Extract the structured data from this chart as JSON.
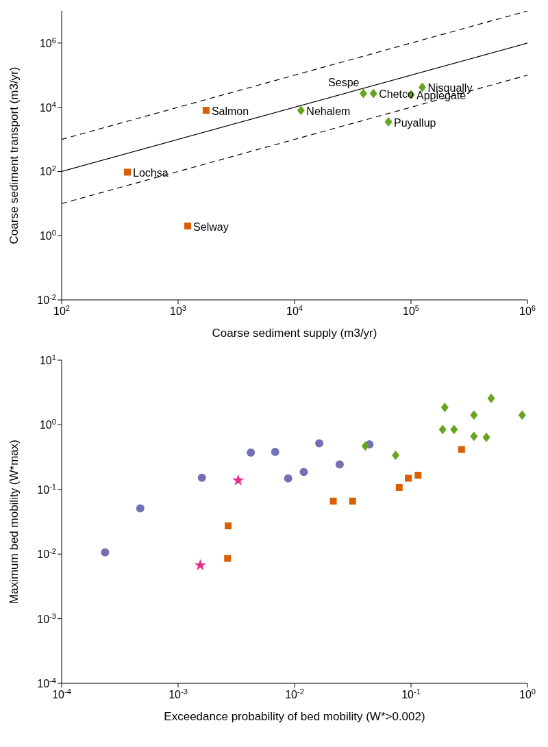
{
  "chart_data": [
    {
      "type": "scatter",
      "xlabel": "Coarse sediment supply (m3/yr)",
      "ylabel": "Coarse sediment transport (m3/yr)",
      "log": "xy",
      "xlim": [
        100,
        1000000
      ],
      "xticks": [
        {
          "value": 100,
          "label": "10$^{2}$"
        },
        {
          "value": 1000,
          "label": "10$^{3}$"
        },
        {
          "value": 10000,
          "label": "10$^{4}$"
        },
        {
          "value": 100000,
          "label": "10$^{5}$"
        },
        {
          "value": 1000000,
          "label": "10$^{6}$"
        }
      ],
      "ylim": [
        0.01,
        10000000
      ],
      "yticks": [
        {
          "value": 0.01,
          "label": "10$^{-2}$"
        },
        {
          "value": 1,
          "label": "10$^{0}$"
        },
        {
          "value": 100,
          "label": "10$^{2}$"
        },
        {
          "value": 10000,
          "label": "10$^{4}$"
        },
        {
          "value": 1000000,
          "label": "10$^{6}$"
        }
      ],
      "series": [
        {
          "color": "#d95f02",
          "marker": "square",
          "x": [
            1740,
            367,
            1210
          ],
          "values": [
            8000,
            95,
            2
          ]
        },
        {
          "color": "#66a61e",
          "marker": "diamond",
          "x": [
            11350,
            39000,
            47600,
            100000,
            125000,
            64000
          ],
          "values": [
            8000,
            27000,
            27000,
            24700,
            42000,
            3500
          ]
        },
        {
          "type": "line",
          "color": "#000000",
          "marker": "none",
          "line_style": "solid",
          "x": [
            100,
            1000000
          ],
          "values": [
            100,
            1000000
          ]
        },
        {
          "type": "line",
          "color": "#000000",
          "marker": "none",
          "line_style": "dashed",
          "x": [
            100,
            1000000
          ],
          "values": [
            1000,
            10000000
          ]
        },
        {
          "type": "line",
          "color": "#000000",
          "marker": "none",
          "line_style": "dashed",
          "x": [
            100,
            1000000
          ],
          "values": [
            10,
            100000
          ]
        }
      ],
      "annotations": [
        {
          "text": "Salmon",
          "x": 1740,
          "y": 8000
        },
        {
          "text": "Lochsa",
          "x": 367,
          "y": 95
        },
        {
          "text": "Selway",
          "x": 1210,
          "y": 2
        },
        {
          "text": "Nehalem",
          "x": 11350,
          "y": 8000
        },
        {
          "text": "Sespe",
          "x": 39000,
          "y": 27000
        },
        {
          "text": "Chetco",
          "x": 47600,
          "y": 27000
        },
        {
          "text": "Applegate",
          "x": 100000,
          "y": 24700
        },
        {
          "text": "Nisqually",
          "x": 125000,
          "y": 42000
        },
        {
          "text": "Puyallup",
          "x": 64000,
          "y": 3500
        }
      ]
    },
    {
      "type": "scatter",
      "xlabel": "Exceedance probability of bed mobility (W*>0.002)",
      "ylabel": "Maximum bed mobility (W*max)",
      "log": "xy",
      "xlim": [
        0.0001,
        1
      ],
      "xticks": [
        {
          "value": 0.0001,
          "label": "10$^{-4}$"
        },
        {
          "value": 0.001,
          "label": "10$^{-3}$"
        },
        {
          "value": 0.01,
          "label": "10$^{-2}$"
        },
        {
          "value": 0.1,
          "label": "10$^{-1}$"
        },
        {
          "value": 1,
          "label": "10$^{0}$"
        }
      ],
      "ylim": [
        0.0001,
        10
      ],
      "yticks": [
        {
          "value": 0.0001,
          "label": "10$^{-4}$"
        },
        {
          "value": 0.001,
          "label": "10$^{-3}$"
        },
        {
          "value": 0.01,
          "label": "10$^{-2}$"
        },
        {
          "value": 0.1,
          "label": "10$^{-1}$"
        },
        {
          "value": 1,
          "label": "10$^{0}$"
        },
        {
          "value": 10,
          "label": "10$^{1}$"
        }
      ],
      "series": [
        {
          "color": "#7570b3",
          "marker": "circle",
          "x": [
            0.000236,
            0.000473,
            0.0016,
            0.00421,
            0.00682,
            0.00881,
            0.012,
            0.0163,
            0.0244,
            0.044
          ],
          "values": [
            0.0106,
            0.051,
            0.152,
            0.372,
            0.38,
            0.148,
            0.187,
            0.516,
            0.244,
            0.497
          ]
        },
        {
          "color": "#e7298a",
          "marker": "star",
          "x": [
            0.00155,
            0.00328
          ],
          "values": [
            0.0067,
            0.138
          ]
        },
        {
          "color": "#d95f02",
          "marker": "square",
          "x": [
            0.00269,
            0.00266,
            0.0215,
            0.0315,
            0.0792,
            0.0949,
            0.115,
            0.272
          ],
          "values": [
            0.0273,
            0.00855,
            0.066,
            0.066,
            0.107,
            0.149,
            0.166,
            0.415
          ]
        },
        {
          "color": "#66a61e",
          "marker": "diamond",
          "x": [
            0.0405,
            0.0738,
            0.187,
            0.195,
            0.234,
            0.347,
            0.347,
            0.444,
            0.488,
            0.9
          ],
          "values": [
            0.469,
            0.337,
            0.848,
            1.86,
            0.848,
            1.41,
            0.664,
            0.641,
            2.57,
            1.41
          ]
        }
      ]
    }
  ]
}
